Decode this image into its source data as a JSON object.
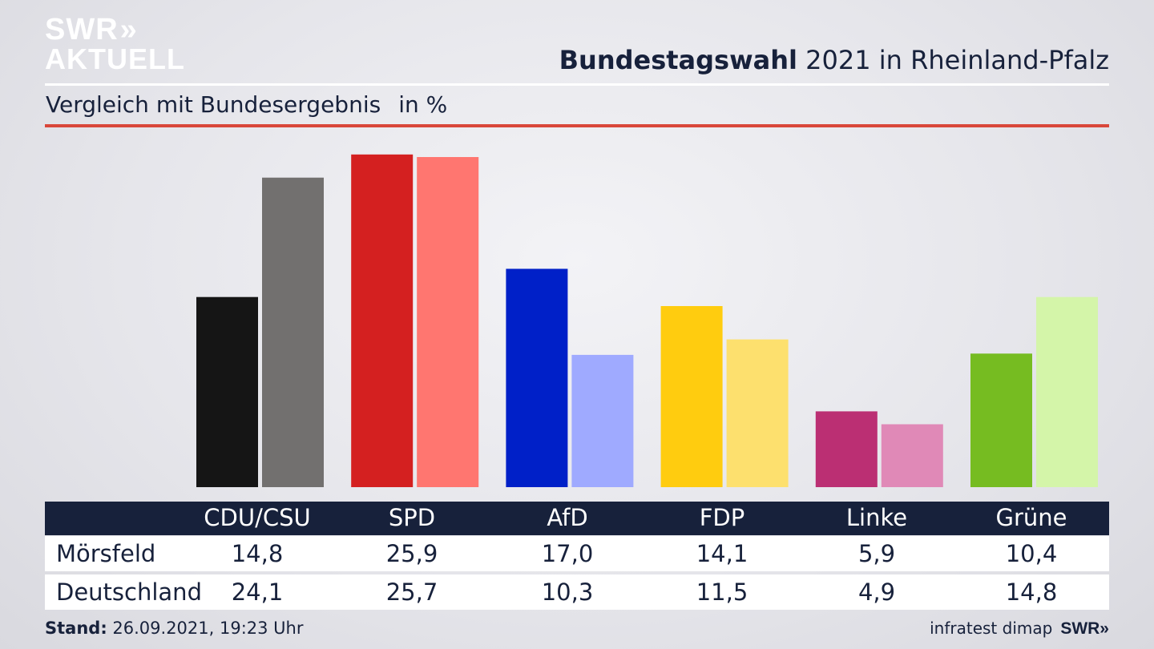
{
  "brand": {
    "logo_line1": "SWR",
    "logo_chev": "»",
    "logo_line2": "AKTUELL"
  },
  "header": {
    "title_bold": "Bundestagswahl",
    "title_rest": " 2021 in Rheinland-Pfalz"
  },
  "subtitle": {
    "text": "Vergleich mit Bundesergebnis",
    "unit": "in %"
  },
  "colors": {
    "navy": "#17213b",
    "accent_red": "#d9473a"
  },
  "chart_data": {
    "type": "bar",
    "categories": [
      "CDU/CSU",
      "SPD",
      "AfD",
      "FDP",
      "Linke",
      "Grüne"
    ],
    "series": [
      {
        "name": "Mörsfeld",
        "values": [
          14.8,
          25.9,
          17.0,
          14.1,
          5.9,
          10.4
        ],
        "colors": [
          "#151515",
          "#d42020",
          "#0020c8",
          "#ffcc0f",
          "#bb2f73",
          "#76bc21"
        ]
      },
      {
        "name": "Deutschland",
        "values": [
          24.1,
          25.7,
          10.3,
          11.5,
          4.9,
          14.8
        ],
        "colors": [
          "#72706f",
          "#ff7670",
          "#9faaff",
          "#fde06e",
          "#e089b7",
          "#d4f5a9"
        ]
      }
    ],
    "ylim": [
      0,
      26.2
    ],
    "grid": false,
    "legend": "table below chart"
  },
  "table": {
    "rows": [
      {
        "label": "Mörsfeld",
        "values": [
          "14,8",
          "25,9",
          "17,0",
          "14,1",
          "5,9",
          "10,4"
        ]
      },
      {
        "label": "Deutschland",
        "values": [
          "24,1",
          "25,7",
          "10,3",
          "11,5",
          "4,9",
          "14,8"
        ]
      }
    ]
  },
  "footer": {
    "stand_label": "Stand:",
    "stand_value": " 26.09.2021, 19:23 Uhr",
    "source": "infratest dimap",
    "brand": "SWR»"
  }
}
